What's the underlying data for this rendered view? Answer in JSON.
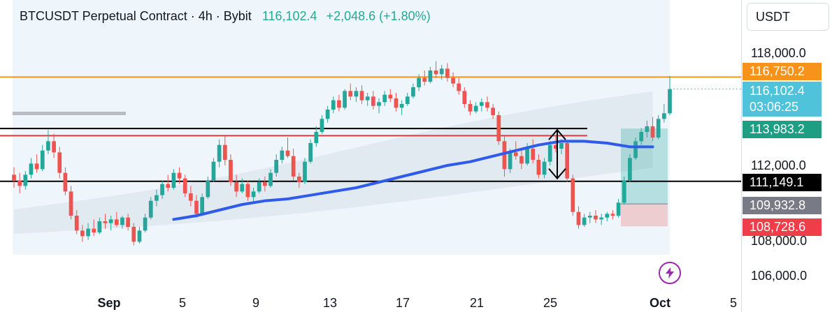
{
  "header": {
    "title": "BTCUSDT Perpetual Contract · 4h · Bybit",
    "last_price": "116,102.4",
    "change": "+2,048.6 (+1.80%)"
  },
  "price_scale": {
    "currency": "USDT",
    "ticks": [
      "118,000.0",
      "112,000.0",
      "108,000.0",
      "106,000.0"
    ],
    "tags": [
      {
        "label": "116,750.2",
        "color": "#f7931a"
      },
      {
        "label": "116,102.4",
        "sublabel": "03:06:25",
        "color": "#4fc3d9"
      },
      {
        "label": "113,983.2",
        "color": "#1e9e83"
      },
      {
        "label": "111,149.1",
        "color": "#000000"
      },
      {
        "label": "109,932.8",
        "color": "#787b86"
      },
      {
        "label": "108,728.6",
        "color": "#ef3e4a"
      }
    ]
  },
  "time_axis": {
    "labels": [
      "Sep",
      "5",
      "9",
      "13",
      "17",
      "21",
      "25",
      "Oct",
      "5"
    ]
  },
  "colors": {
    "up": "#26a69a",
    "down": "#ef5350",
    "ma": "#2f5bea",
    "resistance": "#f7931a",
    "support_red": "#e53935"
  },
  "chart_data": {
    "type": "candlestick",
    "title": "BTCUSDT Perpetual Contract · 4h · Bybit",
    "y_axis_ticks": [
      106000,
      108000,
      112000,
      118000
    ],
    "x_axis_ticks": [
      "Sep",
      "5",
      "9",
      "13",
      "17",
      "21",
      "25",
      "Oct",
      "5"
    ],
    "levels": [
      {
        "price": 116750.2,
        "color": "#f7931a"
      },
      {
        "price": 113983.2,
        "color": "#000000"
      },
      {
        "price": 113600,
        "color": "#e53935"
      },
      {
        "price": 111149.1,
        "color": "#000000"
      }
    ],
    "position_tool": {
      "entry": 109932.8,
      "target": 113983.2,
      "stop": 108728.6
    },
    "last_price": 116102.4,
    "series": [
      {
        "values": [
          [
            111500,
            111900,
            110800,
            111200
          ],
          [
            111200,
            111600,
            110500,
            110900
          ],
          [
            110900,
            111700,
            110700,
            111500
          ],
          [
            111500,
            112400,
            111300,
            112100
          ],
          [
            112100,
            112600,
            111600,
            111800
          ],
          [
            111800,
            113100,
            111700,
            112800
          ],
          [
            112800,
            113900,
            112600,
            113300
          ],
          [
            113300,
            113700,
            112400,
            112700
          ],
          [
            112700,
            113000,
            111300,
            111600
          ],
          [
            111600,
            111900,
            110400,
            110600
          ],
          [
            110600,
            110900,
            109100,
            109300
          ],
          [
            109300,
            109600,
            108300,
            108500
          ],
          [
            108500,
            108800,
            107900,
            108200
          ],
          [
            108200,
            108900,
            108000,
            108600
          ],
          [
            108600,
            109100,
            108200,
            108400
          ],
          [
            108400,
            109200,
            108300,
            109000
          ],
          [
            109000,
            109400,
            108600,
            108900
          ],
          [
            108900,
            109300,
            108500,
            109100
          ],
          [
            109100,
            109500,
            108700,
            108800
          ],
          [
            108800,
            109300,
            108600,
            109200
          ],
          [
            109200,
            109400,
            108500,
            108700
          ],
          [
            108700,
            108900,
            107700,
            107900
          ],
          [
            107900,
            108700,
            107800,
            108500
          ],
          [
            108500,
            109400,
            108400,
            109200
          ],
          [
            109200,
            110300,
            109100,
            110100
          ],
          [
            110100,
            110700,
            109800,
            110400
          ],
          [
            110400,
            111200,
            110200,
            111000
          ],
          [
            111000,
            111500,
            110600,
            110800
          ],
          [
            110800,
            111800,
            110700,
            111600
          ],
          [
            111600,
            111900,
            111000,
            111300
          ],
          [
            111300,
            111500,
            110300,
            110500
          ],
          [
            110500,
            110900,
            109800,
            110100
          ],
          [
            110100,
            110400,
            109200,
            109400
          ],
          [
            109400,
            110500,
            109300,
            110300
          ],
          [
            110300,
            111400,
            110200,
            111200
          ],
          [
            111200,
            112400,
            111100,
            112200
          ],
          [
            112200,
            113400,
            111900,
            113100
          ],
          [
            113100,
            113600,
            112000,
            112300
          ],
          [
            112300,
            112600,
            110900,
            111100
          ],
          [
            111100,
            111500,
            110300,
            110600
          ],
          [
            110600,
            111300,
            110500,
            111000
          ],
          [
            111000,
            111200,
            110100,
            110300
          ],
          [
            110300,
            110800,
            110000,
            110600
          ],
          [
            110600,
            111300,
            110500,
            111100
          ],
          [
            111100,
            111400,
            110600,
            110900
          ],
          [
            110900,
            111800,
            110800,
            111600
          ],
          [
            111600,
            112600,
            111400,
            112300
          ],
          [
            112300,
            113000,
            112100,
            112800
          ],
          [
            112800,
            113500,
            112400,
            112500
          ],
          [
            112500,
            112900,
            111200,
            111400
          ],
          [
            111400,
            111600,
            110800,
            111100
          ],
          [
            111100,
            112400,
            111000,
            112200
          ],
          [
            112200,
            113400,
            112100,
            113200
          ],
          [
            113200,
            114100,
            113000,
            113800
          ],
          [
            113800,
            114700,
            113700,
            114500
          ],
          [
            114500,
            115200,
            114300,
            115000
          ],
          [
            115000,
            115700,
            114800,
            115500
          ],
          [
            115500,
            115800,
            114900,
            115100
          ],
          [
            115100,
            116100,
            115000,
            116000
          ],
          [
            116000,
            116400,
            115500,
            115700
          ],
          [
            115700,
            116200,
            115400,
            116000
          ],
          [
            116000,
            116300,
            115300,
            115500
          ],
          [
            115500,
            115900,
            115200,
            115700
          ],
          [
            115700,
            116000,
            115000,
            115200
          ],
          [
            115200,
            115600,
            114800,
            115400
          ],
          [
            115400,
            116000,
            115200,
            115800
          ],
          [
            115800,
            116100,
            115400,
            115600
          ],
          [
            115600,
            115900,
            114900,
            115100
          ],
          [
            115100,
            115500,
            114700,
            115300
          ],
          [
            115300,
            115900,
            115200,
            115700
          ],
          [
            115700,
            116400,
            115600,
            116200
          ],
          [
            116200,
            116900,
            116000,
            116700
          ],
          [
            116700,
            117100,
            116300,
            116500
          ],
          [
            116500,
            117300,
            116400,
            117100
          ],
          [
            117100,
            117600,
            116700,
            116900
          ],
          [
            116900,
            117400,
            116600,
            117200
          ],
          [
            117200,
            117500,
            116500,
            116700
          ],
          [
            116700,
            117000,
            116200,
            116400
          ],
          [
            116400,
            116700,
            115800,
            116000
          ],
          [
            116000,
            116200,
            115100,
            115300
          ],
          [
            115300,
            115500,
            114700,
            114900
          ],
          [
            114900,
            115400,
            114800,
            115200
          ],
          [
            115200,
            115600,
            114900,
            115400
          ],
          [
            115400,
            115700,
            114900,
            115100
          ],
          [
            115100,
            115300,
            114500,
            114700
          ],
          [
            114700,
            114900,
            113100,
            113300
          ],
          [
            113300,
            113600,
            111400,
            111800
          ],
          [
            111800,
            112900,
            111600,
            112700
          ],
          [
            112700,
            113300,
            112300,
            112500
          ],
          [
            112500,
            112900,
            111800,
            112100
          ],
          [
            112100,
            113200,
            112000,
            112900
          ],
          [
            112900,
            113400,
            112100,
            112300
          ],
          [
            112300,
            112600,
            111300,
            111500
          ],
          [
            111500,
            112400,
            111300,
            112200
          ],
          [
            112200,
            113300,
            112000,
            113100
          ],
          [
            113100,
            113600,
            112700,
            112900
          ],
          [
            112900,
            113400,
            112600,
            113200
          ],
          [
            113200,
            113300,
            111100,
            111300
          ],
          [
            111300,
            111500,
            109300,
            109500
          ],
          [
            109500,
            109800,
            108600,
            108800
          ],
          [
            108800,
            109400,
            108700,
            109200
          ],
          [
            109200,
            109500,
            108900,
            109300
          ],
          [
            109300,
            109600,
            108900,
            109100
          ],
          [
            109100,
            109400,
            108800,
            109200
          ],
          [
            109200,
            109500,
            109000,
            109400
          ],
          [
            109400,
            109600,
            109100,
            109300
          ],
          [
            109300,
            110200,
            109200,
            110000
          ],
          [
            110000,
            111400,
            109900,
            111200
          ],
          [
            111200,
            112600,
            111100,
            112400
          ],
          [
            112400,
            113500,
            112300,
            113300
          ],
          [
            113300,
            114000,
            113100,
            113800
          ],
          [
            113800,
            114400,
            113500,
            114100
          ],
          [
            114100,
            114600,
            113300,
            113500
          ],
          [
            113500,
            114700,
            113400,
            114500
          ],
          [
            114500,
            115300,
            114300,
            114800
          ],
          [
            114800,
            116800,
            114700,
            116102.4
          ]
        ]
      }
    ],
    "moving_average": [
      [
        28,
        109100
      ],
      [
        32,
        109300
      ],
      [
        36,
        109600
      ],
      [
        40,
        109900
      ],
      [
        44,
        110100
      ],
      [
        48,
        110200
      ],
      [
        52,
        110400
      ],
      [
        56,
        110600
      ],
      [
        60,
        110800
      ],
      [
        64,
        111100
      ],
      [
        68,
        111400
      ],
      [
        72,
        111700
      ],
      [
        76,
        112000
      ],
      [
        80,
        112200
      ],
      [
        84,
        112500
      ],
      [
        88,
        112800
      ],
      [
        92,
        113100
      ],
      [
        96,
        113300
      ],
      [
        100,
        113300
      ],
      [
        104,
        113200
      ],
      [
        108,
        113000
      ],
      [
        112,
        113000
      ]
    ]
  }
}
